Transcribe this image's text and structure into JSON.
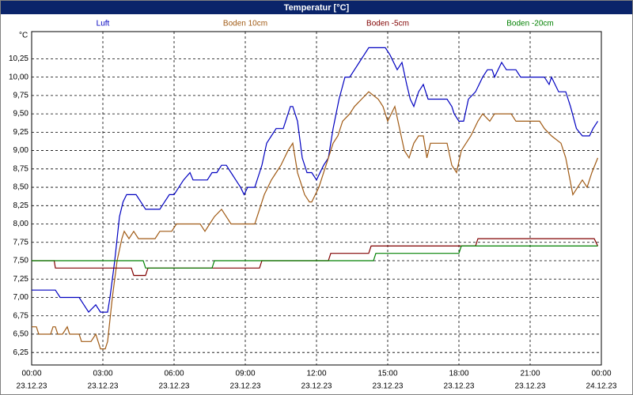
{
  "chart_data": {
    "type": "line",
    "title": "Temperatur [°C]",
    "y_unit": "°C",
    "xlim": [
      0,
      24
    ],
    "ylim": [
      6.08,
      10.62
    ],
    "grid": true,
    "xticks": [
      {
        "value": 0,
        "label": "00:00"
      },
      {
        "value": 3,
        "label": "03:00"
      },
      {
        "value": 6,
        "label": "06:00"
      },
      {
        "value": 9,
        "label": "09:00"
      },
      {
        "value": 12,
        "label": "12:00"
      },
      {
        "value": 15,
        "label": "15:00"
      },
      {
        "value": 18,
        "label": "18:00"
      },
      {
        "value": 21,
        "label": "21:00"
      },
      {
        "value": 24,
        "label": "00:00"
      }
    ],
    "xtick_dates": [
      "23.12.23",
      "23.12.23",
      "23.12.23",
      "23.12.23",
      "23.12.23",
      "23.12.23",
      "23.12.23",
      "23.12.23",
      "24.12.23"
    ],
    "yticks": [
      {
        "value": 6.25,
        "label": "6,25"
      },
      {
        "value": 6.5,
        "label": "6,50"
      },
      {
        "value": 6.75,
        "label": "6,75"
      },
      {
        "value": 7,
        "label": "7,00"
      },
      {
        "value": 7.25,
        "label": "7,25"
      },
      {
        "value": 7.5,
        "label": "7,50"
      },
      {
        "value": 7.75,
        "label": "7,75"
      },
      {
        "value": 8,
        "label": "8,00"
      },
      {
        "value": 8.25,
        "label": "8,25"
      },
      {
        "value": 8.5,
        "label": "8,50"
      },
      {
        "value": 8.75,
        "label": "8,75"
      },
      {
        "value": 9,
        "label": "9,00"
      },
      {
        "value": 9.25,
        "label": "9,25"
      },
      {
        "value": 9.5,
        "label": "9,50"
      },
      {
        "value": 9.75,
        "label": "9,75"
      },
      {
        "value": 10,
        "label": "10,00"
      },
      {
        "value": 10.25,
        "label": "10,25"
      }
    ],
    "series": [
      {
        "name": "Luft",
        "color": "#0000c0",
        "x": [
          0,
          1.0,
          1.2,
          2.0,
          2.2,
          2.4,
          2.7,
          2.9,
          3.2,
          3.3,
          3.5,
          3.7,
          3.85,
          4.0,
          4.4,
          4.6,
          4.8,
          5.4,
          5.6,
          5.8,
          6.0,
          6.2,
          6.4,
          6.67,
          6.8,
          7.0,
          7.4,
          7.6,
          7.8,
          8.0,
          8.2,
          8.4,
          8.6,
          8.8,
          8.95,
          9.1,
          9.4,
          9.6,
          9.7,
          9.9,
          10.1,
          10.3,
          10.6,
          10.7,
          10.9,
          11.0,
          11.2,
          11.4,
          11.6,
          11.8,
          12.0,
          12.3,
          12.5,
          12.7,
          12.95,
          13.2,
          13.4,
          13.6,
          13.8,
          14.0,
          14.2,
          14.9,
          15.1,
          15.4,
          15.6,
          15.8,
          15.95,
          16.1,
          16.3,
          16.5,
          16.7,
          17.5,
          17.7,
          17.8,
          18.0,
          18.2,
          18.4,
          18.7,
          19.0,
          19.2,
          19.4,
          19.5,
          19.8,
          20.0,
          20.4,
          20.6,
          21.6,
          21.8,
          21.9,
          22.2,
          22.5,
          22.6,
          22.7,
          22.95,
          23.2,
          23.5,
          23.65,
          23.85
        ],
        "values": [
          7.1,
          7.1,
          7.0,
          7.0,
          6.9,
          6.8,
          6.9,
          6.8,
          6.8,
          7.0,
          7.5,
          8.1,
          8.3,
          8.4,
          8.4,
          8.3,
          8.2,
          8.2,
          8.3,
          8.4,
          8.4,
          8.5,
          8.6,
          8.7,
          8.6,
          8.6,
          8.6,
          8.7,
          8.7,
          8.8,
          8.8,
          8.7,
          8.6,
          8.5,
          8.4,
          8.5,
          8.5,
          8.7,
          8.8,
          9.1,
          9.2,
          9.3,
          9.3,
          9.4,
          9.6,
          9.6,
          9.4,
          8.9,
          8.7,
          8.7,
          8.6,
          8.8,
          8.9,
          9.3,
          9.7,
          10.0,
          10.0,
          10.1,
          10.2,
          10.3,
          10.4,
          10.4,
          10.3,
          10.1,
          10.2,
          9.9,
          9.7,
          9.6,
          9.8,
          9.9,
          9.7,
          9.7,
          9.6,
          9.5,
          9.4,
          9.4,
          9.7,
          9.8,
          10.0,
          10.1,
          10.1,
          10.0,
          10.2,
          10.1,
          10.1,
          10.0,
          10.0,
          9.9,
          10.0,
          9.8,
          9.8,
          9.7,
          9.6,
          9.3,
          9.2,
          9.2,
          9.3,
          9.4
        ]
      },
      {
        "name": "Boden 10cm",
        "color": "#a05a14",
        "x": [
          0,
          0.2,
          0.3,
          0.8,
          0.9,
          1.0,
          1.1,
          1.3,
          1.5,
          1.6,
          2.0,
          2.1,
          2.5,
          2.7,
          2.9,
          3.1,
          3.2,
          3.4,
          3.6,
          3.8,
          3.9,
          4.1,
          4.3,
          4.5,
          5.2,
          5.4,
          5.9,
          6.1,
          7.1,
          7.3,
          7.5,
          7.7,
          8.0,
          8.2,
          8.4,
          9.4,
          9.6,
          9.8,
          10.1,
          10.3,
          10.5,
          10.8,
          11.0,
          11.2,
          11.5,
          11.7,
          11.8,
          12.1,
          12.5,
          12.7,
          12.9,
          13.1,
          13.4,
          13.6,
          13.9,
          14.2,
          14.6,
          14.8,
          15.0,
          15.3,
          15.5,
          15.7,
          15.9,
          16.1,
          16.3,
          16.5,
          16.65,
          16.8,
          17.5,
          17.7,
          17.9,
          18.1,
          18.5,
          18.8,
          19.0,
          19.3,
          19.5,
          20.2,
          20.4,
          21.4,
          21.6,
          21.9,
          22.3,
          22.5,
          22.8,
          23.0,
          23.2,
          23.4,
          23.6,
          23.85
        ],
        "values": [
          6.6,
          6.6,
          6.5,
          6.5,
          6.6,
          6.6,
          6.5,
          6.5,
          6.6,
          6.5,
          6.5,
          6.4,
          6.4,
          6.5,
          6.3,
          6.3,
          6.4,
          7.0,
          7.5,
          7.8,
          7.9,
          7.8,
          7.9,
          7.8,
          7.8,
          7.9,
          7.9,
          8.0,
          8.0,
          7.9,
          8.0,
          8.1,
          8.2,
          8.1,
          8.0,
          8.0,
          8.2,
          8.4,
          8.6,
          8.7,
          8.8,
          9.0,
          9.1,
          8.7,
          8.4,
          8.3,
          8.3,
          8.5,
          8.9,
          9.1,
          9.2,
          9.4,
          9.5,
          9.6,
          9.7,
          9.8,
          9.7,
          9.6,
          9.4,
          9.6,
          9.3,
          9.0,
          8.9,
          9.1,
          9.2,
          9.2,
          8.9,
          9.1,
          9.1,
          8.8,
          8.7,
          9.0,
          9.2,
          9.4,
          9.5,
          9.4,
          9.5,
          9.5,
          9.4,
          9.4,
          9.3,
          9.2,
          9.1,
          8.9,
          8.4,
          8.5,
          8.6,
          8.5,
          8.7,
          8.9
        ]
      },
      {
        "name": "Boden -5cm",
        "color": "#800000",
        "x": [
          0,
          0.95,
          1.0,
          4.2,
          4.3,
          4.8,
          4.9,
          9.6,
          9.7,
          12.5,
          12.6,
          14.2,
          14.3,
          18.7,
          18.8,
          23.7,
          23.85
        ],
        "values": [
          7.5,
          7.5,
          7.4,
          7.4,
          7.3,
          7.3,
          7.4,
          7.4,
          7.5,
          7.5,
          7.6,
          7.6,
          7.7,
          7.7,
          7.8,
          7.8,
          7.7
        ]
      },
      {
        "name": "Boden -20cm",
        "color": "#008000",
        "x": [
          0,
          4.7,
          4.8,
          7.6,
          7.7,
          14.4,
          14.5,
          18.0,
          18.1,
          23.85
        ],
        "values": [
          7.5,
          7.5,
          7.4,
          7.4,
          7.5,
          7.5,
          7.6,
          7.6,
          7.7,
          7.7
        ]
      }
    ]
  }
}
